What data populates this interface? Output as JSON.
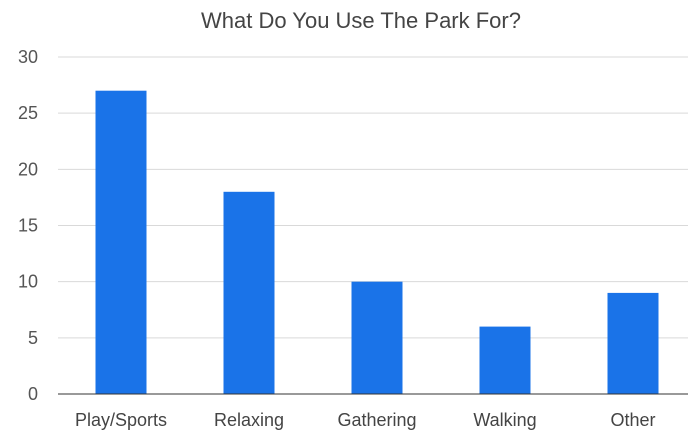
{
  "chart_data": {
    "type": "bar",
    "title": "What Do You Use The Park For?",
    "categories": [
      "Play/Sports",
      "Relaxing",
      "Gathering",
      "Walking",
      "Other"
    ],
    "values": [
      27,
      18,
      10,
      6,
      9
    ],
    "ylim": [
      0,
      30
    ],
    "yticks": [
      0,
      5,
      10,
      15,
      20,
      25,
      30
    ],
    "grid": true,
    "legend": "none",
    "bar_color": "#1a73e8"
  }
}
